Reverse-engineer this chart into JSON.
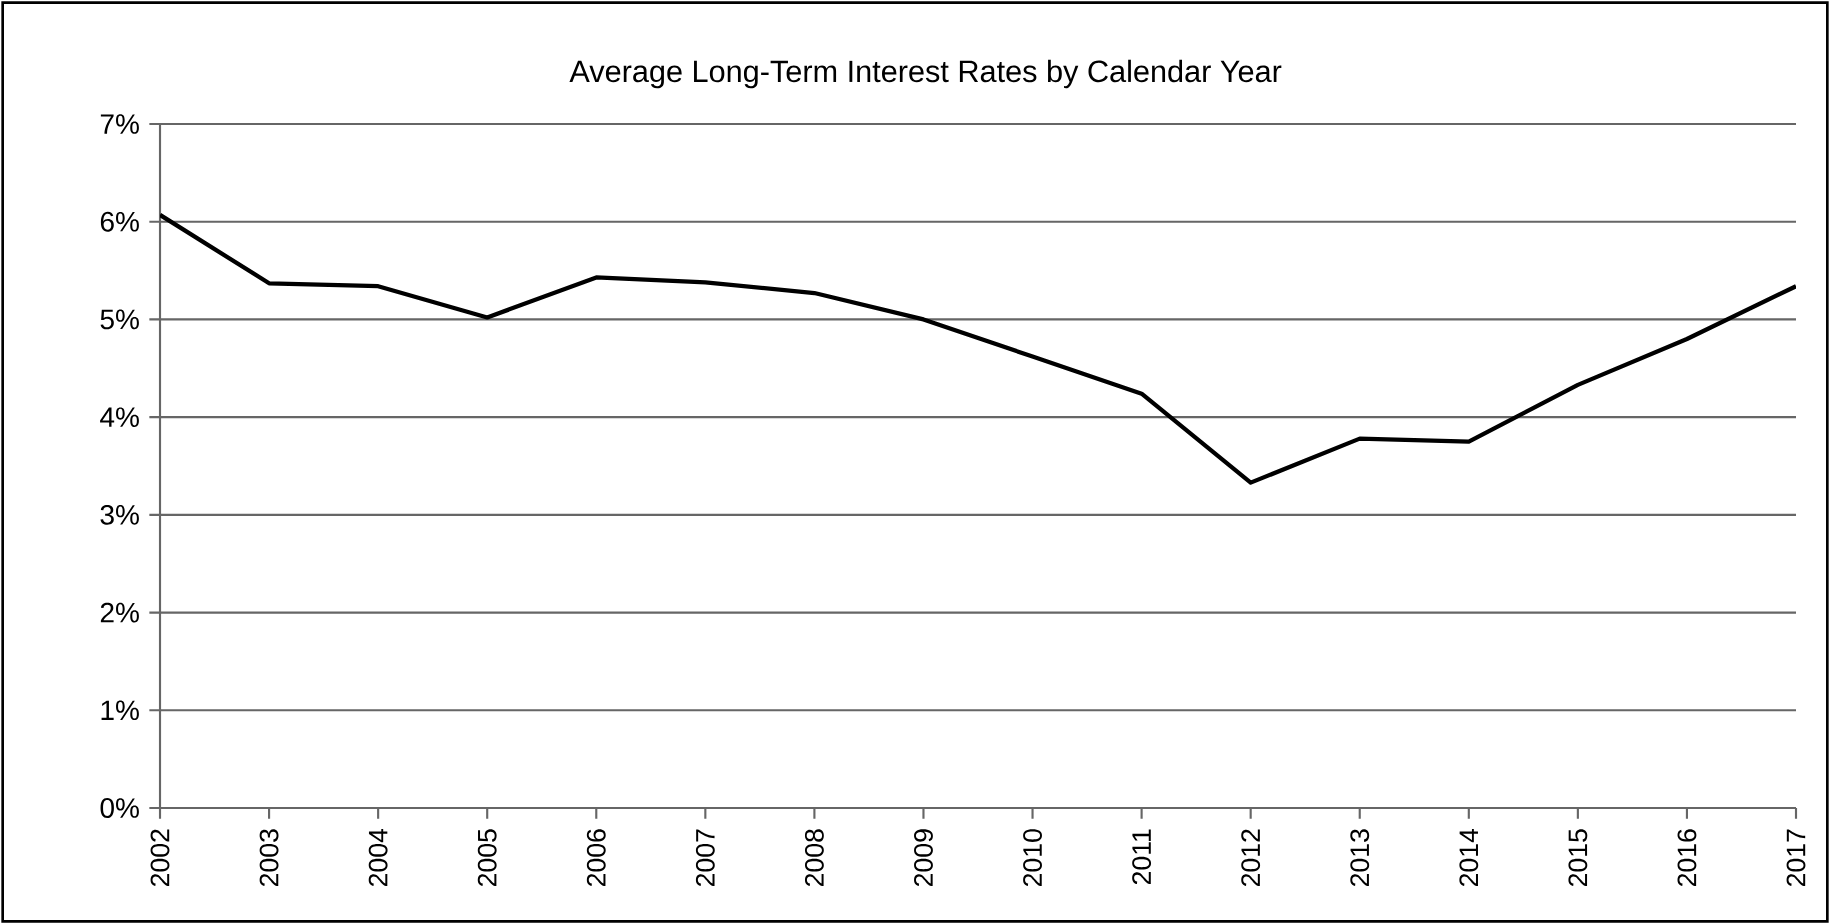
{
  "chart_data": {
    "type": "line",
    "title": "Average Long-Term Interest Rates by Calendar Year",
    "categories": [
      "2002",
      "2003",
      "2004",
      "2005",
      "2006",
      "2007",
      "2008",
      "2009",
      "2010",
      "2011",
      "2012",
      "2013",
      "2014",
      "2015",
      "2016",
      "2017"
    ],
    "series": [
      {
        "color": "#000000",
        "values": [
          6.07,
          5.37,
          5.34,
          5.02,
          5.43,
          5.38,
          5.27,
          5.0,
          4.62,
          4.24,
          3.33,
          3.78,
          3.75,
          4.33,
          4.8,
          5.34
        ]
      }
    ],
    "ylim": [
      0,
      7
    ],
    "yticks": [
      {
        "value": 0,
        "label": "0%"
      },
      {
        "value": 1,
        "label": "1%"
      },
      {
        "value": 2,
        "label": "2%"
      },
      {
        "value": 3,
        "label": "3%"
      },
      {
        "value": 4,
        "label": "4%"
      },
      {
        "value": 5,
        "label": "5%"
      },
      {
        "value": 6,
        "label": "6%"
      },
      {
        "value": 7,
        "label": "7%"
      }
    ],
    "grid": "y",
    "marker": "none",
    "line_style": "solid"
  }
}
